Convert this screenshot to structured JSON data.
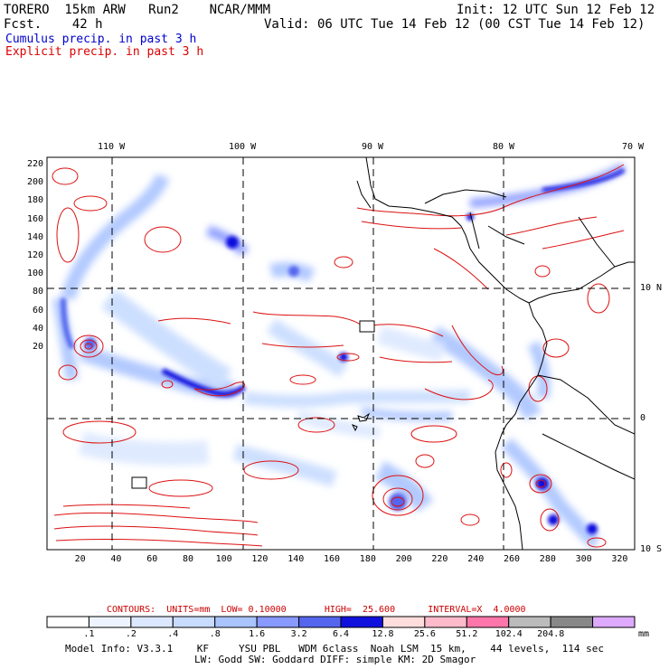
{
  "header": {
    "model": "TORERO  15km ARW   Run2    NCAR/MMM",
    "init": "Init: 12 UTC Sun 12 Feb 12",
    "fcst": "Fcst.    42 h",
    "valid": "Valid: 06 UTC Tue 14 Feb 12 (00 CST Tue 14 Feb 12)",
    "legend1": "Cumulus precip. in past 3 h",
    "legend2": "Explicit precip. in past 3 h"
  },
  "colors": {
    "cumulus": "#0000cc",
    "explicit": "#dd0000",
    "contour": "#dd1111",
    "coast": "#000000"
  },
  "axes": {
    "top": [
      "110 W",
      "100 W",
      "90 W",
      "80 W",
      "70 W"
    ],
    "right": [
      "10 N",
      "0",
      "10 S"
    ],
    "left": [
      "220",
      "200",
      "180",
      "160",
      "140",
      "120",
      "100",
      "80",
      "60",
      "40",
      "20"
    ],
    "bottom": [
      "20",
      "40",
      "60",
      "80",
      "100",
      "120",
      "140",
      "160",
      "180",
      "200",
      "220",
      "240",
      "260",
      "280",
      "300",
      "320"
    ]
  },
  "contour_info": {
    "label": "CONTOURS:  UNITS=mm  LOW= 0.10000       HIGH=  25.600      INTERVAL=X  4.0000"
  },
  "colorbar": {
    "unit": "mm",
    "bins": [
      {
        "label": ".1",
        "color": "#ffffff"
      },
      {
        "label": ".2",
        "color": "#eef4ff"
      },
      {
        "label": ".4",
        "color": "#dce8ff"
      },
      {
        "label": ".8",
        "color": "#c8dcff"
      },
      {
        "label": "1.6",
        "color": "#aac4ff"
      },
      {
        "label": "3.2",
        "color": "#8899ff"
      },
      {
        "label": "6.4",
        "color": "#5566ee"
      },
      {
        "label": "12.8",
        "color": "#1111dd"
      },
      {
        "label": "25.6",
        "color": "#ffdddd"
      },
      {
        "label": "51.2",
        "color": "#ffbbcc"
      },
      {
        "label": "102.4",
        "color": "#ff77aa"
      },
      {
        "label": "204.8",
        "color": "#bbbbbb"
      },
      {
        "label": "",
        "color": "#888888"
      },
      {
        "label": "",
        "color": "#ddaaff"
      }
    ]
  },
  "footer": {
    "line1": "Model Info: V3.3.1    KF     YSU PBL   WDM 6class  Noah LSM  15 km,    44 levels,  114 sec",
    "line2": "LW: Godd SW: Goddard DIFF: simple KM: 2D Smagor"
  }
}
